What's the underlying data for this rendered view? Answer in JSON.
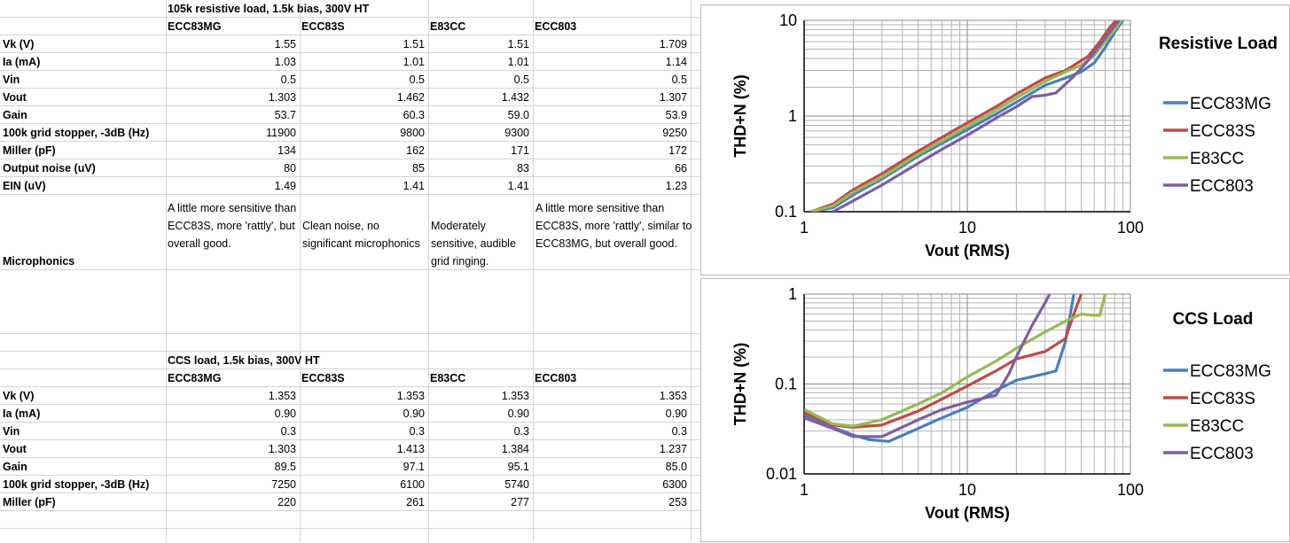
{
  "table1": {
    "title": "105k resistive load, 1.5k bias, 300V HT",
    "columns": [
      "ECC83MG",
      "ECC83S",
      "E83CC",
      "ECC803"
    ],
    "rows": [
      {
        "label": "Vk (V)",
        "values": [
          "1.55",
          "1.51",
          "1.51",
          "1.709"
        ]
      },
      {
        "label": "Ia (mA)",
        "values": [
          "1.03",
          "1.01",
          "1.01",
          "1.14"
        ]
      },
      {
        "label": "Vin",
        "values": [
          "0.5",
          "0.5",
          "0.5",
          "0.5"
        ]
      },
      {
        "label": "Vout",
        "values": [
          "1.303",
          "1.462",
          "1.432",
          "1.307"
        ]
      },
      {
        "label": "Gain",
        "values": [
          "53.7",
          "60.3",
          "59.0",
          "53.9"
        ]
      },
      {
        "label": "100k grid stopper, -3dB (Hz)",
        "values": [
          "11900",
          "9800",
          "9300",
          "9250"
        ]
      },
      {
        "label": "Miller (pF)",
        "values": [
          "134",
          "162",
          "171",
          "172"
        ]
      },
      {
        "label": "Output noise (uV)",
        "values": [
          "80",
          "85",
          "83",
          "66"
        ]
      },
      {
        "label": "EIN (uV)",
        "values": [
          "1.49",
          "1.41",
          "1.41",
          "1.23"
        ]
      }
    ],
    "microphonics_label": "Microphonics",
    "microphonics": [
      "A little more sensitive than ECC83S, more 'rattly', but overall good.",
      "Clean noise, no significant microphonics",
      "Moderately sensitive, audible grid ringing.",
      "A little more sensitive than ECC83S, more 'rattly', similar to ECC83MG, but overall good."
    ]
  },
  "table2": {
    "title": "CCS load, 1.5k bias, 300V HT",
    "columns": [
      "ECC83MG",
      "ECC83S",
      "E83CC",
      "ECC803"
    ],
    "rows": [
      {
        "label": "Vk (V)",
        "values": [
          "1.353",
          "1.353",
          "1.353",
          "1.353"
        ]
      },
      {
        "label": "Ia (mA)",
        "values": [
          "0.90",
          "0.90",
          "0.90",
          "0.90"
        ]
      },
      {
        "label": "Vin",
        "values": [
          "0.3",
          "0.3",
          "0.3",
          "0.3"
        ]
      },
      {
        "label": "Vout",
        "values": [
          "1.303",
          "1.413",
          "1.384",
          "1.237"
        ]
      },
      {
        "label": "Gain",
        "values": [
          "89.5",
          "97.1",
          "95.1",
          "85.0"
        ]
      },
      {
        "label": "100k grid stopper, -3dB (Hz)",
        "values": [
          "7250",
          "6100",
          "5740",
          "6300"
        ]
      },
      {
        "label": "Miller (pF)",
        "values": [
          "220",
          "261",
          "277",
          "253"
        ]
      }
    ]
  },
  "colors": {
    "ECC83MG": "#4a7ebb",
    "ECC83S": "#be4b48",
    "E83CC": "#98b954",
    "ECC803": "#7d5fa0",
    "grid": "#b4b4b4",
    "cell_border": "#d4d4d4"
  },
  "chart_data": [
    {
      "type": "line",
      "title": "Resistive Load",
      "xlabel": "Vout (RMS)",
      "ylabel": "THD+N (%)",
      "xscale": "log",
      "yscale": "log",
      "xlim": [
        1,
        100
      ],
      "ylim": [
        0.1,
        10
      ],
      "x_ticks": [
        "1",
        "10",
        "100"
      ],
      "y_ticks": [
        "0.1",
        "1",
        "10"
      ],
      "grid": true,
      "legend": "right",
      "series": [
        {
          "name": "ECC83MG",
          "points": [
            [
              1.1,
              0.1
            ],
            [
              1.5,
              0.11
            ],
            [
              2,
              0.15
            ],
            [
              3,
              0.22
            ],
            [
              5,
              0.38
            ],
            [
              7,
              0.52
            ],
            [
              10,
              0.72
            ],
            [
              15,
              1.05
            ],
            [
              20,
              1.4
            ],
            [
              30,
              2.1
            ],
            [
              40,
              2.5
            ],
            [
              50,
              2.9
            ],
            [
              60,
              3.6
            ],
            [
              70,
              5.2
            ],
            [
              80,
              7.5
            ],
            [
              90,
              10
            ]
          ]
        },
        {
          "name": "ECC83S",
          "points": [
            [
              1.1,
              0.1
            ],
            [
              1.5,
              0.12
            ],
            [
              2,
              0.17
            ],
            [
              3,
              0.25
            ],
            [
              5,
              0.43
            ],
            [
              7,
              0.6
            ],
            [
              10,
              0.85
            ],
            [
              15,
              1.25
            ],
            [
              20,
              1.7
            ],
            [
              30,
              2.5
            ],
            [
              40,
              3.0
            ],
            [
              55,
              4.2
            ],
            [
              65,
              6.0
            ],
            [
              75,
              8.5
            ],
            [
              82,
              10
            ]
          ]
        },
        {
          "name": "E83CC",
          "points": [
            [
              1.1,
              0.1
            ],
            [
              1.5,
              0.115
            ],
            [
              2,
              0.16
            ],
            [
              3,
              0.23
            ],
            [
              5,
              0.4
            ],
            [
              7,
              0.55
            ],
            [
              10,
              0.78
            ],
            [
              15,
              1.15
            ],
            [
              20,
              1.55
            ],
            [
              30,
              2.3
            ],
            [
              40,
              2.9
            ],
            [
              50,
              3.4
            ],
            [
              60,
              4.3
            ],
            [
              70,
              6.0
            ],
            [
              80,
              8.0
            ],
            [
              88,
              10
            ]
          ]
        },
        {
          "name": "ECC803",
          "points": [
            [
              1.5,
              0.1
            ],
            [
              2,
              0.13
            ],
            [
              3,
              0.19
            ],
            [
              5,
              0.32
            ],
            [
              7,
              0.45
            ],
            [
              10,
              0.63
            ],
            [
              15,
              0.95
            ],
            [
              20,
              1.25
            ],
            [
              25,
              1.6
            ],
            [
              30,
              1.65
            ],
            [
              35,
              1.75
            ],
            [
              45,
              2.6
            ],
            [
              55,
              3.8
            ],
            [
              70,
              6.5
            ],
            [
              85,
              10
            ]
          ]
        }
      ]
    },
    {
      "type": "line",
      "title": "CCS Load",
      "xlabel": "Vout (RMS)",
      "ylabel": "THD+N (%)",
      "xscale": "log",
      "yscale": "log",
      "xlim": [
        1,
        100
      ],
      "ylim": [
        0.01,
        1
      ],
      "x_ticks": [
        "1",
        "10",
        "100"
      ],
      "y_ticks": [
        "0.01",
        "0.1",
        "1"
      ],
      "grid": true,
      "legend": "right",
      "series": [
        {
          "name": "ECC83MG",
          "points": [
            [
              1,
              0.045
            ],
            [
              1.5,
              0.033
            ],
            [
              2,
              0.027
            ],
            [
              2.5,
              0.024
            ],
            [
              3.3,
              0.023
            ],
            [
              5,
              0.032
            ],
            [
              7,
              0.042
            ],
            [
              10,
              0.055
            ],
            [
              15,
              0.085
            ],
            [
              20,
              0.11
            ],
            [
              30,
              0.13
            ],
            [
              35,
              0.14
            ],
            [
              40,
              0.3
            ],
            [
              45,
              1.0
            ]
          ]
        },
        {
          "name": "ECC83S",
          "points": [
            [
              1,
              0.048
            ],
            [
              1.5,
              0.035
            ],
            [
              2,
              0.033
            ],
            [
              3,
              0.035
            ],
            [
              5,
              0.05
            ],
            [
              7,
              0.068
            ],
            [
              10,
              0.095
            ],
            [
              15,
              0.14
            ],
            [
              20,
              0.19
            ],
            [
              30,
              0.23
            ],
            [
              40,
              0.32
            ],
            [
              45,
              0.6
            ],
            [
              50,
              1.0
            ]
          ]
        },
        {
          "name": "E83CC",
          "points": [
            [
              1,
              0.052
            ],
            [
              1.5,
              0.036
            ],
            [
              2,
              0.034
            ],
            [
              3,
              0.04
            ],
            [
              5,
              0.06
            ],
            [
              7,
              0.08
            ],
            [
              10,
              0.12
            ],
            [
              15,
              0.18
            ],
            [
              20,
              0.25
            ],
            [
              30,
              0.38
            ],
            [
              40,
              0.5
            ],
            [
              50,
              0.6
            ],
            [
              60,
              0.58
            ],
            [
              65,
              0.58
            ],
            [
              70,
              1.0
            ]
          ]
        },
        {
          "name": "ECC803",
          "points": [
            [
              1,
              0.042
            ],
            [
              1.5,
              0.032
            ],
            [
              2,
              0.026
            ],
            [
              3,
              0.026
            ],
            [
              5,
              0.04
            ],
            [
              7,
              0.052
            ],
            [
              10,
              0.063
            ],
            [
              15,
              0.075
            ],
            [
              18,
              0.13
            ],
            [
              20,
              0.2
            ],
            [
              25,
              0.45
            ],
            [
              30,
              0.8
            ],
            [
              32,
              1.0
            ]
          ]
        }
      ]
    }
  ]
}
